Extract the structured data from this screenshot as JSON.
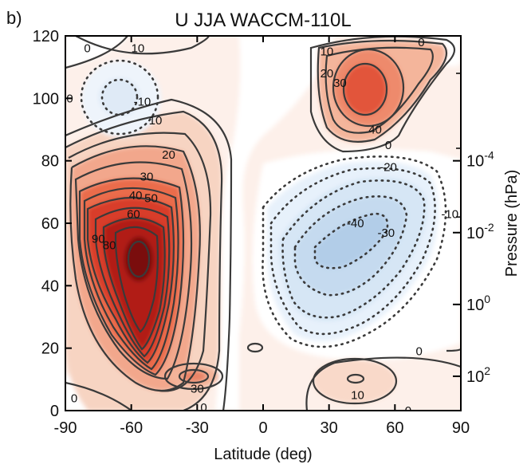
{
  "panel_label": "b)",
  "chart_data": {
    "type": "heatmap",
    "subtype": "filled-contour",
    "title": "U JJA WACCM-110L",
    "xlabel": "Latitude (deg)",
    "ylabel_right": "Pressure (hPa)",
    "xlim": [
      -90,
      90
    ],
    "ylim": [
      0,
      120
    ],
    "x_ticks": [
      -90,
      -60,
      -30,
      0,
      30,
      60,
      90
    ],
    "x_tick_labels": [
      "-90",
      "-60",
      "-30",
      "0",
      "30",
      "60",
      "90"
    ],
    "y_ticks": [
      0,
      20,
      40,
      60,
      80,
      100,
      120
    ],
    "y_tick_labels": [
      "0",
      "20",
      "40",
      "60",
      "80",
      "100",
      "120"
    ],
    "right_axis": {
      "ticks": [
        {
          "y": 11,
          "base": "10",
          "exp": "2"
        },
        {
          "y": 34,
          "base": "10",
          "exp": "0"
        },
        {
          "y": 57,
          "base": "10",
          "exp": "-2"
        },
        {
          "y": 80,
          "base": "10",
          "exp": "-4"
        }
      ]
    },
    "right_axis_ticks_y": [
      108,
      84,
      62,
      34,
      11
    ],
    "contour_interval": 10,
    "negative_contours": "dotted",
    "features": [
      {
        "name": "SH winter jet",
        "sign": "positive",
        "center_lat": -57,
        "center_alt": 50,
        "peak": 110
      },
      {
        "name": "subtropical jet SH",
        "sign": "positive",
        "center_lat": -32,
        "center_alt": 11,
        "peak": 30
      },
      {
        "name": "NH easterly jet",
        "sign": "negative",
        "center_lat": 30,
        "center_alt": 52,
        "peak": -40
      },
      {
        "name": "NH MLT westerly",
        "sign": "positive",
        "center_lat": 47,
        "center_alt": 104,
        "peak": 40
      },
      {
        "name": "SH MLT easterly",
        "sign": "negative",
        "center_lat": -66,
        "center_alt": 101,
        "peak": -10
      },
      {
        "name": "NH tropospheric jet",
        "sign": "positive",
        "center_lat": 42,
        "center_alt": 11,
        "peak": 10
      }
    ],
    "contour_labels": [
      {
        "text": "0",
        "lat": -80,
        "alt": 116
      },
      {
        "text": "10",
        "lat": -57,
        "alt": 116
      },
      {
        "text": "0",
        "lat": -88,
        "alt": 100
      },
      {
        "text": "-10",
        "lat": -55,
        "alt": 99
      },
      {
        "text": "10",
        "lat": -49,
        "alt": 93
      },
      {
        "text": "20",
        "lat": -43,
        "alt": 82
      },
      {
        "text": "30",
        "lat": -53,
        "alt": 75
      },
      {
        "text": "40",
        "lat": -58,
        "alt": 69
      },
      {
        "text": "50",
        "lat": -51,
        "alt": 68
      },
      {
        "text": "60",
        "lat": -59,
        "alt": 63
      },
      {
        "text": "90",
        "lat": -75,
        "alt": 55
      },
      {
        "text": "80",
        "lat": -70,
        "alt": 53
      },
      {
        "text": "0",
        "lat": 72,
        "alt": 118
      },
      {
        "text": "10",
        "lat": 29,
        "alt": 115
      },
      {
        "text": "20",
        "lat": 29,
        "alt": 108
      },
      {
        "text": "30",
        "lat": 35,
        "alt": 105
      },
      {
        "text": "40",
        "lat": 51,
        "alt": 90
      },
      {
        "text": "0",
        "lat": 57,
        "alt": 85
      },
      {
        "text": "-20",
        "lat": 57,
        "alt": 78
      },
      {
        "text": "-10",
        "lat": 85,
        "alt": 63
      },
      {
        "text": "-40",
        "lat": 42,
        "alt": 60
      },
      {
        "text": "-30",
        "lat": 56,
        "alt": 57
      },
      {
        "text": "0",
        "lat": 71,
        "alt": 19
      },
      {
        "text": "30",
        "lat": -30,
        "alt": 7
      },
      {
        "text": "10",
        "lat": 43,
        "alt": 5
      },
      {
        "text": "0",
        "lat": -86,
        "alt": 4
      },
      {
        "text": "0",
        "lat": -27,
        "alt": 1
      },
      {
        "text": "0",
        "lat": 66,
        "alt": 0
      }
    ]
  }
}
